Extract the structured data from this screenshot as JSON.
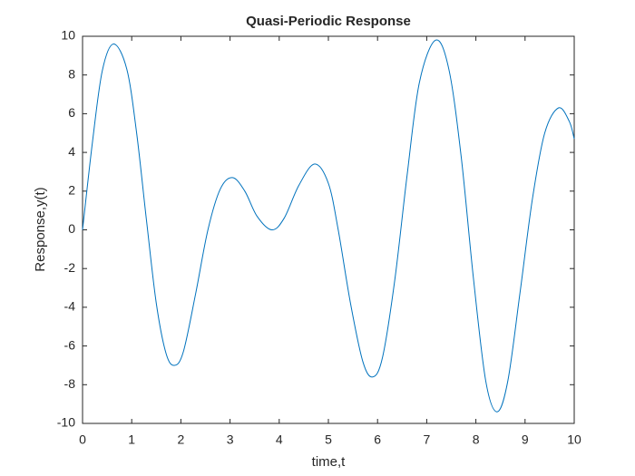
{
  "chart_data": {
    "type": "line",
    "title": "Quasi-Periodic Response",
    "x_label": "time,t",
    "y_label": "Response,y(t)",
    "x": [
      0,
      0.2,
      0.4,
      0.63,
      0.9,
      1.1,
      1.3,
      1.5,
      1.7,
      1.87,
      2.05,
      2.3,
      2.55,
      2.8,
      3.05,
      3.3,
      3.55,
      3.85,
      4.1,
      4.4,
      4.72,
      5.0,
      5.2,
      5.45,
      5.7,
      5.9,
      6.1,
      6.35,
      6.6,
      6.85,
      7.18,
      7.45,
      7.7,
      7.95,
      8.2,
      8.43,
      8.65,
      8.9,
      9.15,
      9.4,
      9.68,
      9.9,
      10
    ],
    "values": [
      0,
      4.5,
      8.2,
      9.6,
      8.3,
      5.0,
      0.5,
      -3.8,
      -6.4,
      -7.0,
      -6.3,
      -3.3,
      0,
      2.1,
      2.7,
      2.0,
      0.7,
      0,
      0.6,
      2.3,
      3.4,
      2.4,
      0,
      -3.8,
      -6.8,
      -7.6,
      -6.6,
      -2.6,
      2.8,
      7.6,
      9.8,
      8.3,
      3.8,
      -2.5,
      -7.8,
      -9.4,
      -7.8,
      -3.2,
      1.6,
      5.0,
      6.3,
      5.6,
      4.7
    ],
    "color": "#0072bd",
    "xlim": [
      0,
      10
    ],
    "xticks": [
      0,
      1,
      2,
      3,
      4,
      5,
      6,
      7,
      8,
      9,
      10
    ],
    "ylim": [
      -10,
      10
    ],
    "yticks": [
      -10,
      -8,
      -6,
      -4,
      -2,
      0,
      2,
      4,
      6,
      8,
      10
    ]
  }
}
